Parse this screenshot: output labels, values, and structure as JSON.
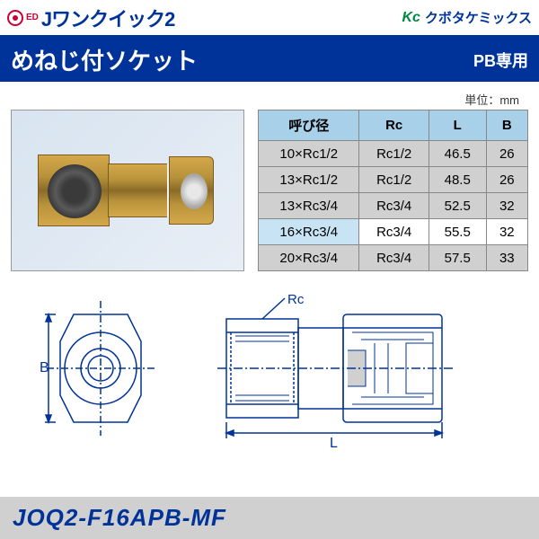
{
  "header": {
    "brand_ed": "ED",
    "brand_main": "Jワンクイック2",
    "company_logo": "Kc",
    "company_name": "クボタケミックス"
  },
  "title": {
    "main": "めねじ付ソケット",
    "sub": "PB専用"
  },
  "unit_label": "単位：mm",
  "table": {
    "headers": [
      "呼び径",
      "Rc",
      "L",
      "B"
    ],
    "rows": [
      {
        "cells": [
          "10×Rc1/2",
          "Rc1/2",
          "46.5",
          "26"
        ],
        "highlight": false
      },
      {
        "cells": [
          "13×Rc1/2",
          "Rc1/2",
          "48.5",
          "26"
        ],
        "highlight": false
      },
      {
        "cells": [
          "13×Rc3/4",
          "Rc3/4",
          "52.5",
          "32"
        ],
        "highlight": false
      },
      {
        "cells": [
          "16×Rc3/4",
          "Rc3/4",
          "55.5",
          "32"
        ],
        "highlight": true
      },
      {
        "cells": [
          "20×Rc3/4",
          "Rc3/4",
          "57.5",
          "33"
        ],
        "highlight": false
      }
    ]
  },
  "diagram": {
    "label_rc": "Rc",
    "label_b": "B",
    "label_l": "L"
  },
  "part_number": "JOQ2-F16APB-MF",
  "colors": {
    "primary": "#003399",
    "accent": "#cc0033",
    "header_bg": "#a8d0e8",
    "row_normal": "#d0d0d0",
    "row_hl_first": "#c8e4f4",
    "footer_bg": "#d0d0d0"
  }
}
